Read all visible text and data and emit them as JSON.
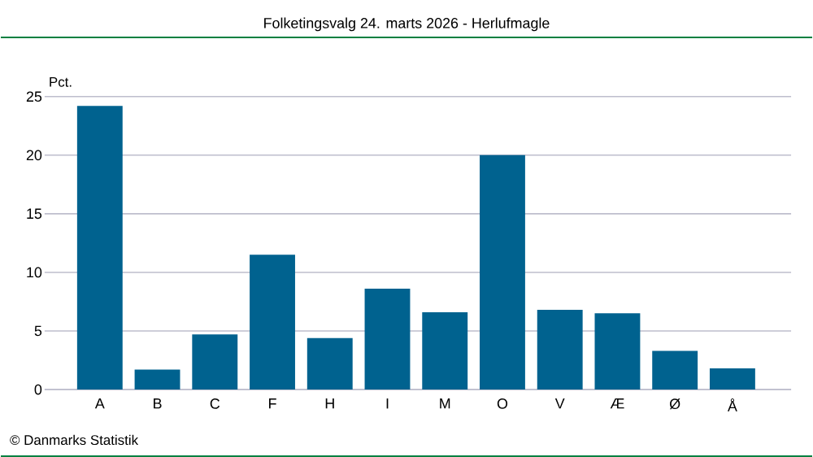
{
  "chart_data": {
    "type": "bar",
    "title": "Folketingsvalg 24. marts 2026 - Herlufmagle",
    "ylabel": "Pct.",
    "categories": [
      "A",
      "B",
      "C",
      "F",
      "H",
      "I",
      "M",
      "O",
      "V",
      "Æ",
      "Ø",
      "Å"
    ],
    "values": [
      24.2,
      1.7,
      4.7,
      11.5,
      4.4,
      8.6,
      6.6,
      20.0,
      6.8,
      6.5,
      3.3,
      1.8
    ],
    "color": "#00628f",
    "ylim": [
      0,
      25
    ],
    "yticks": [
      0,
      5,
      10,
      15,
      20,
      25
    ],
    "grid": "y",
    "annotations": [
      "© Danmarks Statistik"
    ]
  }
}
